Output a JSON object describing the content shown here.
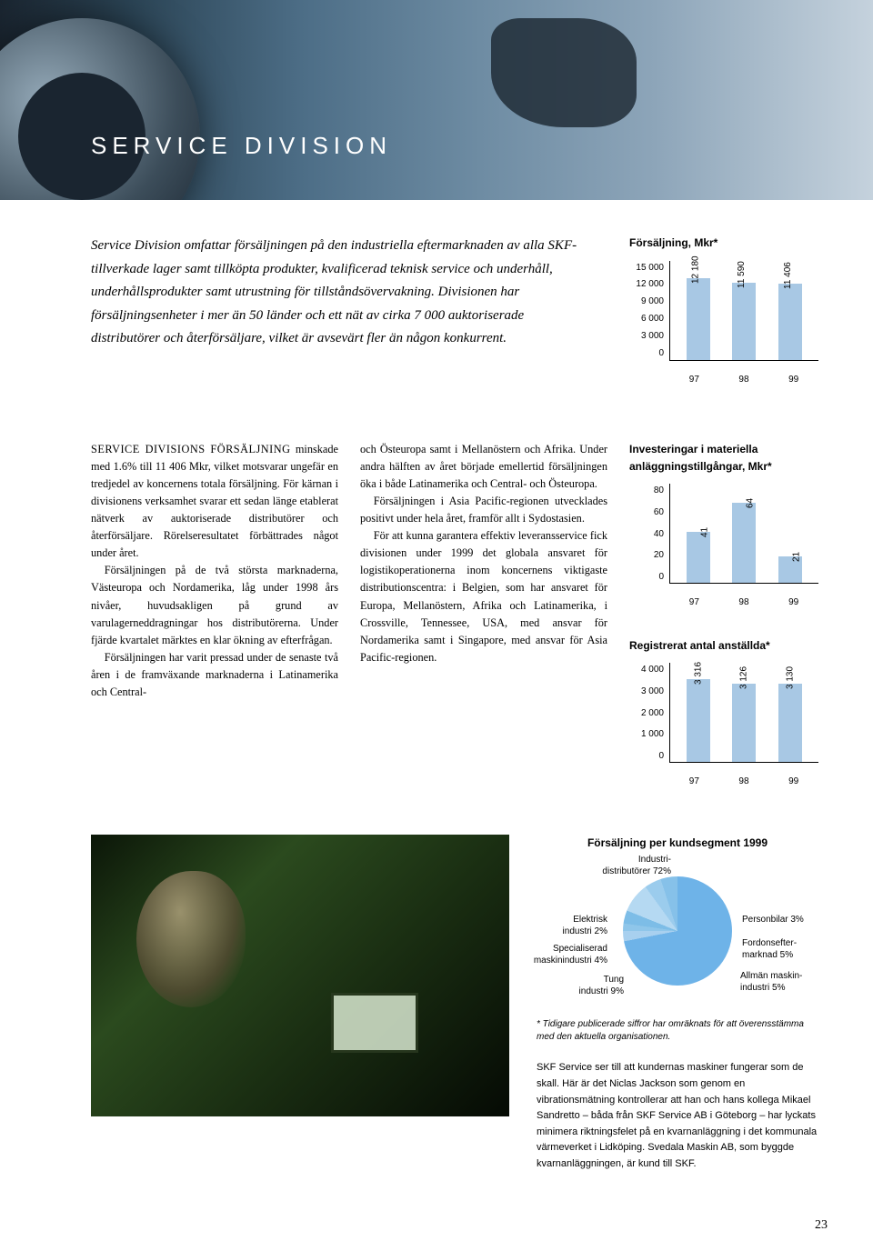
{
  "header": {
    "title": "SERVICE DIVISION"
  },
  "intro": "Service Division omfattar försäljningen på den industriella eftermarknaden av alla SKF-tillverkade lager samt tillköpta produkter, kvalificerad teknisk service och underhåll, underhållsprodukter samt utrustning för tillståndsövervakning. Divisionen har försäljningsenheter i mer än 50 länder och ett nät av cirka 7 000 auktoriserade distributörer och återförsäljare, vilket är avsevärt fler än någon konkurrent.",
  "col1_lead_span": "SERVICE DIVISIONS FÖRSÄLJNING",
  "col1": {
    "p1_rest": " minskade med 1.6% till 11 406 Mkr, vilket motsvarar ungefär en tredjedel av koncernens totala försäljning. För kärnan i divisionens verksamhet svarar ett sedan länge etablerat nätverk av auktoriserade distributörer och återförsäljare. Rörelseresultatet förbättrades något under året.",
    "p2": "Försäljningen på de två största marknaderna, Västeuropa och Nordamerika, låg under 1998 års nivåer, huvudsakligen på grund av varulagerneddragningar hos distributörerna. Under fjärde kvartalet märktes en klar ökning av efterfrågan.",
    "p3": "Försäljningen har varit pressad under de senaste två åren i de framväxande marknaderna i Latinamerika och Central-"
  },
  "col2": {
    "p1": "och Östeuropa samt i Mellanöstern och Afrika. Under andra hälften av året började emellertid försäljningen öka i både Latinamerika och Central- och Östeuropa.",
    "p2": "Försäljningen i Asia Pacific-regionen utvecklades positivt under hela året, framför allt i Sydostasien.",
    "p3": "För att kunna garantera effektiv leveransservice fick divisionen under 1999 det globala ansvaret för logistikoperationerna inom koncernens viktigaste distributionscentra: i Belgien, som har ansvaret för Europa, Mellanöstern, Afrika och Latinamerika, i Crossville, Tennessee, USA, med ansvar för Nordamerika samt i Singapore, med ansvar för Asia Pacific-regionen."
  },
  "chart1": {
    "title": "Försäljning, Mkr*",
    "ylabels": [
      "15 000",
      "12 000",
      "9 000",
      "6 000",
      "3 000",
      "0"
    ],
    "ylim": 15000,
    "bars": [
      {
        "x": "97",
        "v": 12180,
        "label": "12 180"
      },
      {
        "x": "98",
        "v": 11590,
        "label": "11 590"
      },
      {
        "x": "99",
        "v": 11406,
        "label": "11 406"
      }
    ],
    "bar_color": "#a8c8e4"
  },
  "chart2": {
    "title": "Investeringar i materiella anläggningstillgångar, Mkr*",
    "ylabels": [
      "80",
      "60",
      "40",
      "20",
      "0"
    ],
    "ylim": 80,
    "bars": [
      {
        "x": "97",
        "v": 41,
        "label": "41"
      },
      {
        "x": "98",
        "v": 64,
        "label": "64"
      },
      {
        "x": "99",
        "v": 21,
        "label": "21"
      }
    ],
    "bar_color": "#a8c8e4"
  },
  "chart3": {
    "title": "Registrerat antal anställda*",
    "ylabels": [
      "4 000",
      "3 000",
      "2 000",
      "1 000",
      "0"
    ],
    "ylim": 4000,
    "bars": [
      {
        "x": "97",
        "v": 3316,
        "label": "3 316"
      },
      {
        "x": "98",
        "v": 3126,
        "label": "3 126"
      },
      {
        "x": "99",
        "v": 3130,
        "label": "3 130"
      }
    ],
    "bar_color": "#a8c8e4"
  },
  "pie": {
    "title": "Försäljning per kundsegment 1999",
    "labels": {
      "top": "Industri-\ndistributörer 72%",
      "l1": "Elektrisk\nindustri 2%",
      "l2": "Specialiserad\nmaskinindustri 4%",
      "l3": "Tung\nindustri 9%",
      "r1": "Personbilar 3%",
      "r2": "Fordonsefter-\nmarknad 5%",
      "r3": "Allmän maskin-\nindustri 5%"
    }
  },
  "footnote": "* Tidigare publicerade siffror har omräknats för att överensstämma med den aktuella organisationen.",
  "caption": "SKF Service ser till att kundernas maskiner fungerar som de skall. Här är det Niclas Jackson som genom en vibrationsmätning kontrollerar att han och hans kollega Mikael Sandretto – båda från SKF Service AB i Göteborg – har lyckats minimera riktningsfelet på en kvarnanläggning i det kommunala värmeverket i Lidköping. Svedala Maskin AB, som byggde kvarnanläggningen, är kund till SKF.",
  "pagenum": "23"
}
